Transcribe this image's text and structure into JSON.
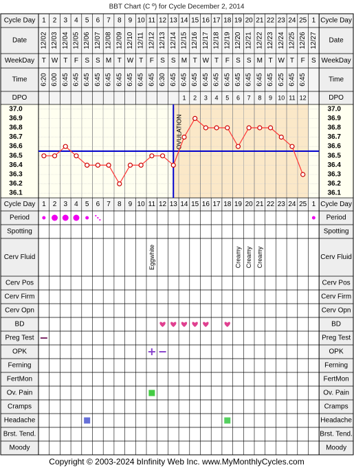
{
  "title": "BBT Chart (C º) for Cycle December 2, 2014",
  "row_labels": {
    "cycle_day": "Cycle Day",
    "date": "Date",
    "weekday": "WeekDay",
    "time": "Time",
    "dpo": "DPO",
    "period": "Period",
    "spotting": "Spotting",
    "cerv_fluid": "Cerv Fluid",
    "cerv_pos": "Cerv Pos",
    "cerv_firm": "Cerv Firm",
    "cerv_opn": "Cerv Opn",
    "bd": "BD",
    "preg_test": "Preg Test",
    "opk": "OPK",
    "ferning": "Ferning",
    "fertmon": "FertMon",
    "ov_pain": "Ov. Pain",
    "cramps": "Cramps",
    "headache": "Headache",
    "brst_tend": "Brst. Tend.",
    "moody": "Moody"
  },
  "cycle_days": [
    "1",
    "2",
    "3",
    "4",
    "5",
    "6",
    "7",
    "8",
    "9",
    "10",
    "11",
    "12",
    "13",
    "14",
    "15",
    "16",
    "17",
    "18",
    "19",
    "20",
    "21",
    "22",
    "23",
    "24",
    "25",
    "1"
  ],
  "dates": [
    "12/02",
    "12/03",
    "12/04",
    "12/05",
    "12/06",
    "12/07",
    "12/08",
    "12/09",
    "12/10",
    "12/11",
    "12/12",
    "12/13",
    "12/14",
    "12/15",
    "12/16",
    "12/17",
    "12/18",
    "12/19",
    "12/20",
    "12/21",
    "12/22",
    "12/23",
    "12/24",
    "12/25",
    "12/26",
    "12/27"
  ],
  "weekdays": [
    "T",
    "W",
    "T",
    "F",
    "S",
    "S",
    "M",
    "T",
    "W",
    "T",
    "F",
    "S",
    "S",
    "M",
    "T",
    "W",
    "T",
    "F",
    "S",
    "S",
    "M",
    "T",
    "W",
    "T",
    "F",
    "S"
  ],
  "times": [
    "6:20",
    "6:00",
    "6:45",
    "6:45",
    "6:45",
    "6:45",
    "6:45",
    "6:45",
    "6:45",
    "6:45",
    "6:45",
    "6:30",
    "6:45",
    "6:45",
    "6:45",
    "6:45",
    "6:45",
    "6:45",
    "6:45",
    "6:45",
    "6:45",
    "6:45",
    "6:25",
    "6:45",
    "6:45",
    ""
  ],
  "dpo": [
    "",
    "",
    "",
    "",
    "",
    "",
    "",
    "",
    "",
    "",
    "",
    "",
    "",
    "1",
    "2",
    "3",
    "4",
    "5",
    "6",
    "7",
    "8",
    "9",
    "10",
    "11",
    "12",
    ""
  ],
  "temp_axis_labels": [
    "37.0",
    "36.9",
    "36.8",
    "36.7",
    "36.6",
    "36.5",
    "36.4",
    "36.3",
    "36.2",
    "36.1"
  ],
  "ovulation_label": "OVULATION",
  "cerv_fluid_values": [
    "",
    "",
    "",
    "",
    "",
    "",
    "",
    "",
    "",
    "",
    "Eggwhite",
    "",
    "",
    "",
    "",
    "",
    "",
    "",
    "Creamy",
    "Creamy",
    "Creamy",
    "",
    "",
    "",
    "",
    ""
  ],
  "bd_days": [
    11,
    12,
    13,
    14,
    15,
    17
  ],
  "preg_test_day": 0,
  "opk": [
    {
      "day": 10,
      "symbol": "+"
    },
    {
      "day": 11,
      "symbol": "−"
    }
  ],
  "ov_pain_days": [
    10
  ],
  "headache": [
    {
      "day": 4,
      "color": "#6670d8"
    },
    {
      "day": 17,
      "color": "#55d060"
    }
  ],
  "period": [
    {
      "day": 0,
      "size": "small"
    },
    {
      "day": 1,
      "size": "large"
    },
    {
      "day": 2,
      "size": "large"
    },
    {
      "day": 3,
      "size": "large"
    },
    {
      "day": 4,
      "size": "small"
    },
    {
      "day": 5,
      "size": "spotting"
    },
    {
      "day": 25,
      "size": "small"
    }
  ],
  "colors": {
    "accent": "#dd0088",
    "grid": "#000000",
    "label_bg": "#eeeeee",
    "plot_bg": "#fffff0",
    "luteal_bg": "#fbe8c8",
    "coverline": "#0000cc",
    "temp_line": "#ff3333",
    "period_dot": "#ee00ee",
    "heart": "#e04090",
    "opk": "#8844cc",
    "ov_pain": "#44cc44",
    "preg_test": "#7a2a66"
  },
  "footer": "Copyright © 2003-2024 bInfinity Web Inc.    www.MyMonthlyCycles.com",
  "chart_data": {
    "type": "line",
    "title": "BBT Chart (C º) for Cycle December 2, 2014",
    "xlabel": "Cycle Day",
    "ylabel": "",
    "x": [
      1,
      2,
      3,
      4,
      5,
      6,
      7,
      8,
      9,
      10,
      11,
      12,
      13,
      14,
      15,
      16,
      17,
      18,
      19,
      20,
      21,
      22,
      23,
      24,
      25
    ],
    "series": [
      {
        "values": [
          36.5,
          36.5,
          36.6,
          36.5,
          36.4,
          36.4,
          36.4,
          36.2,
          36.4,
          36.4,
          36.5,
          36.5,
          36.4,
          36.7,
          36.9,
          36.8,
          36.8,
          36.8,
          36.6,
          36.8,
          36.8,
          36.8,
          36.7,
          36.6,
          36.3
        ]
      }
    ],
    "ylim": [
      36.1,
      37.0
    ],
    "coverline": 36.55,
    "ovulation_day": 13,
    "grid": true
  }
}
